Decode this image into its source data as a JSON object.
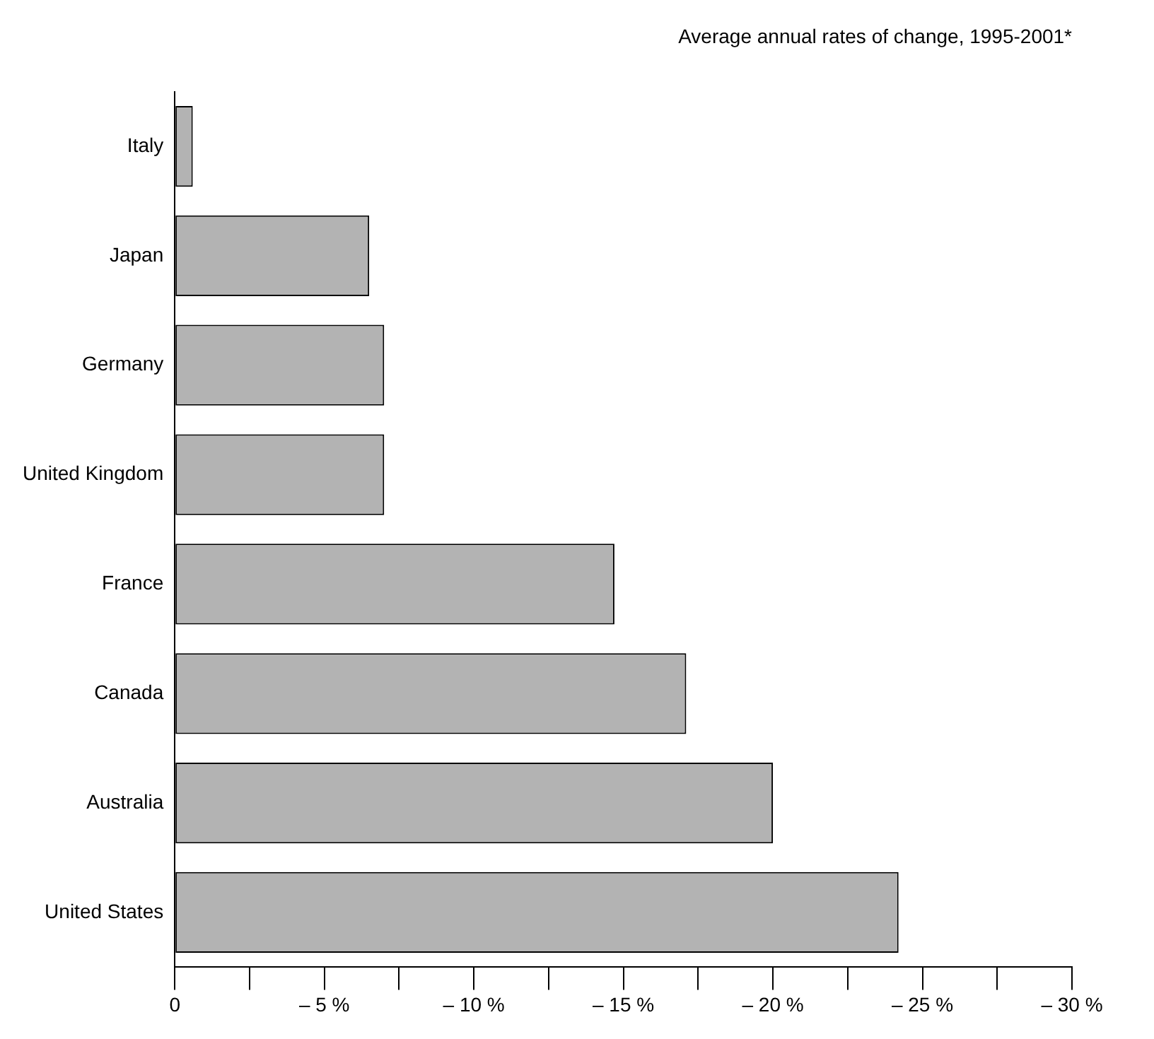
{
  "chart_data": {
    "type": "bar",
    "orientation": "horizontal",
    "title": "Average annual rates of change, 1995-2001*",
    "categories": [
      "Italy",
      "Japan",
      "Germany",
      "United Kingdom",
      "France",
      "Canada",
      "Australia",
      "United States"
    ],
    "values": [
      -0.6,
      -6.5,
      -7.0,
      -7.0,
      -14.7,
      -17.1,
      -20.0,
      -24.2
    ],
    "color": "#b3b3b3",
    "xlim": [
      0,
      -30
    ],
    "xticks": [
      0,
      {
        "value": -2.5,
        "label": null
      },
      {
        "value": -5,
        "label": "– 5 %"
      },
      {
        "value": -7.5,
        "label": null
      },
      {
        "value": -10,
        "label": "– 10 %"
      },
      {
        "value": -12.5,
        "label": null
      },
      {
        "value": -15,
        "label": "– 15 %"
      },
      {
        "value": -17.5,
        "label": null
      },
      {
        "value": -20,
        "label": "– 20 %"
      },
      {
        "value": -22.5,
        "label": null
      },
      {
        "value": -25,
        "label": "– 25 %"
      },
      {
        "value": -27.5,
        "label": null
      },
      {
        "value": -30,
        "label": "– 30 %"
      }
    ],
    "grid": false,
    "legend": false
  }
}
